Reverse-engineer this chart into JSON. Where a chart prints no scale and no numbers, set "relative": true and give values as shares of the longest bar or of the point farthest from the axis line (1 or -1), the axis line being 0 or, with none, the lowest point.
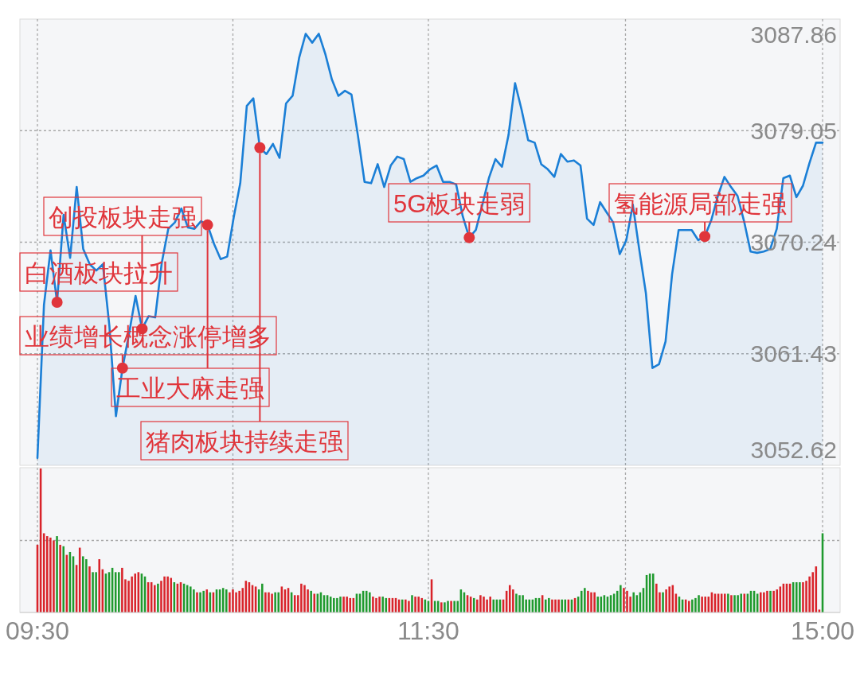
{
  "chart_data": [
    {
      "type": "area",
      "tick_labels": "y",
      "grid": true,
      "ylim": [
        3052.62,
        3087.86
      ],
      "yticks": [
        3052.62,
        3061.43,
        3070.24,
        3079.05,
        3087.86
      ],
      "categories": [
        null,
        null,
        null,
        null,
        null,
        null,
        null,
        null,
        null,
        null,
        null,
        null,
        null,
        null,
        null,
        null,
        null,
        null,
        null,
        null,
        null,
        null,
        null,
        null,
        null,
        null,
        null,
        null,
        null,
        null,
        null,
        null,
        null,
        null,
        null,
        null,
        null,
        null,
        null,
        null,
        null,
        null,
        null,
        null,
        null,
        null,
        null,
        null,
        null,
        null,
        null,
        null,
        null,
        null,
        null,
        null,
        null,
        null,
        null,
        null,
        null,
        null,
        null,
        null,
        null,
        null,
        null,
        null,
        null,
        null,
        null,
        null,
        null,
        null,
        null,
        null,
        null,
        null,
        null,
        null,
        null,
        null,
        null,
        null,
        null,
        null,
        null,
        null,
        null,
        null,
        null,
        null,
        null,
        null,
        null,
        null,
        null,
        null,
        null,
        null,
        null,
        null,
        null,
        null,
        null,
        null,
        null,
        null,
        null,
        null,
        null,
        null,
        null,
        null,
        null,
        null,
        null,
        null,
        null,
        null,
        null
      ],
      "series": [
        {
          "color": "#1b7fd6",
          "values": [
            3053.2,
            3065.3,
            3069.6,
            3065.5,
            3072.4,
            3069.0,
            3074.6,
            3069.7,
            3068.5,
            3068.0,
            3068.5,
            3063.6,
            3056.5,
            3060.3,
            3063.0,
            3066.0,
            3063.4,
            3064.4,
            3064.3,
            3068.6,
            3071.3,
            3071.8,
            3072.9,
            3071.4,
            3071.3,
            3071.9,
            3071.6,
            3070.1,
            3068.9,
            3069.1,
            3072.2,
            3074.9,
            3081.0,
            3081.6,
            3077.7,
            3077.2,
            3078.0,
            3076.9,
            3081.2,
            3081.8,
            3084.8,
            3086.7,
            3086.0,
            3086.7,
            3085.1,
            3083.1,
            3081.8,
            3082.2,
            3081.9,
            3078.6,
            3075.0,
            3074.9,
            3076.4,
            3074.6,
            3076.3,
            3077.0,
            3076.8,
            3075.0,
            3075.3,
            3075.5,
            3076.0,
            3076.3,
            3075.0,
            3075.0,
            3074.8,
            3072.3,
            3070.6,
            3071.2,
            3073.2,
            3075.3,
            3076.8,
            3076.2,
            3078.7,
            3082.8,
            3080.7,
            3078.3,
            3078.1,
            3076.4,
            3076.0,
            3075.4,
            3077.2,
            3076.6,
            3076.7,
            3076.3,
            3072.1,
            3071.6,
            3073.4,
            3072.6,
            3071.8,
            3069.3,
            3070.4,
            3073.2,
            3069.6,
            3066.2,
            3060.3,
            3060.6,
            3062.4,
            3067.7,
            3071.2,
            3071.2,
            3071.2,
            3070.4,
            3070.7,
            3072.0,
            3073.9,
            3075.4,
            3074.6,
            3073.9,
            3071.9,
            3069.5,
            3069.4,
            3069.5,
            3069.7,
            3071.3,
            3075.3,
            3075.5,
            3073.8,
            3074.7,
            3076.5,
            3078.1,
            3078.1
          ]
        },
        {
          "type": "scatter",
          "color": "#e0353b",
          "marker": "circle",
          "values": [
            null,
            null,
            null,
            3065.5,
            null,
            null,
            null,
            null,
            null,
            null,
            null,
            null,
            null,
            3060.3,
            null,
            null,
            3063.4,
            null,
            null,
            null,
            null,
            null,
            null,
            null,
            null,
            null,
            3071.6,
            null,
            null,
            null,
            null,
            null,
            null,
            null,
            3077.7,
            null,
            null,
            null,
            null,
            null,
            null,
            null,
            null,
            null,
            null,
            null,
            null,
            null,
            null,
            null,
            null,
            null,
            null,
            null,
            null,
            null,
            null,
            null,
            null,
            null,
            null,
            null,
            null,
            null,
            null,
            null,
            3070.6,
            null,
            null,
            null,
            null,
            null,
            null,
            null,
            null,
            null,
            null,
            null,
            null,
            null,
            null,
            null,
            null,
            null,
            null,
            null,
            null,
            null,
            null,
            null,
            null,
            null,
            null,
            null,
            null,
            null,
            null,
            null,
            null,
            null,
            null,
            null,
            3070.7,
            null,
            null,
            null,
            null,
            null,
            null,
            null,
            null,
            null,
            null,
            null,
            null,
            null,
            null,
            null,
            null,
            null,
            null
          ]
        }
      ],
      "annotations": [
        "白酒板块拉升",
        "业绩增长概念涨停增多",
        "创投板块走强",
        "工业大麻走强",
        "猪肉板块持续走强",
        "5G板块走弱",
        "氢能源局部走强"
      ]
    },
    {
      "type": "bar",
      "relative": true,
      "grid": true,
      "categories": [
        "09:30",
        null,
        null,
        null,
        null,
        null,
        null,
        null,
        null,
        null,
        null,
        null,
        null,
        null,
        null,
        null,
        null,
        null,
        null,
        null,
        null,
        null,
        null,
        null,
        null,
        null,
        null,
        null,
        null,
        null,
        null,
        null,
        null,
        null,
        null,
        null,
        null,
        null,
        null,
        null,
        null,
        null,
        null,
        null,
        null,
        null,
        null,
        null,
        null,
        null,
        null,
        null,
        null,
        null,
        null,
        null,
        null,
        null,
        null,
        null,
        null,
        null,
        null,
        null,
        null,
        null,
        null,
        null,
        null,
        null,
        null,
        null,
        null,
        null,
        null,
        null,
        null,
        null,
        null,
        null,
        null,
        null,
        null,
        null,
        null,
        null,
        null,
        null,
        null,
        null,
        null,
        null,
        null,
        null,
        null,
        null,
        null,
        null,
        null,
        null,
        null,
        null,
        null,
        null,
        null,
        null,
        null,
        null,
        null,
        null,
        null,
        null,
        null,
        null,
        null,
        null,
        null,
        null,
        null,
        null,
        "11:30",
        null,
        null,
        null,
        null,
        null,
        null,
        null,
        null,
        null,
        null,
        null,
        null,
        null,
        null,
        null,
        null,
        null,
        null,
        null,
        null,
        null,
        null,
        null,
        null,
        null,
        null,
        null,
        null,
        null,
        null,
        null,
        null,
        null,
        null,
        null,
        null,
        null,
        null,
        null,
        null,
        null,
        null,
        null,
        null,
        null,
        null,
        null,
        null,
        null,
        null,
        null,
        null,
        null,
        null,
        null,
        null,
        null,
        null,
        null,
        null,
        null,
        null,
        null,
        null,
        null,
        null,
        null,
        null,
        null,
        null,
        null,
        null,
        null,
        null,
        null,
        null,
        null,
        null,
        null,
        null,
        null,
        null,
        null,
        null,
        null,
        null,
        null,
        null,
        null,
        null,
        null,
        null,
        null,
        null,
        null,
        null,
        null,
        null,
        null,
        null,
        null,
        null,
        null,
        null,
        null,
        null,
        null,
        null,
        null,
        null,
        null,
        null,
        null,
        null,
        null,
        null,
        null,
        null,
        null,
        null,
        "15:00"
      ],
      "values": [
        0.47,
        1.0,
        0.55,
        0.53,
        0.52,
        0.5,
        0.53,
        0.47,
        0.46,
        0.4,
        0.42,
        0.39,
        0.33,
        0.45,
        0.39,
        0.37,
        0.32,
        0.28,
        0.28,
        0.37,
        0.3,
        0.27,
        0.28,
        0.31,
        0.28,
        0.28,
        0.31,
        0.23,
        0.22,
        0.25,
        0.27,
        0.28,
        0.27,
        0.25,
        0.21,
        0.21,
        0.19,
        0.2,
        0.22,
        0.25,
        0.25,
        0.24,
        0.21,
        0.2,
        0.21,
        0.2,
        0.19,
        0.18,
        0.16,
        0.14,
        0.14,
        0.15,
        0.16,
        0.14,
        0.14,
        0.16,
        0.16,
        0.17,
        0.16,
        0.14,
        0.16,
        0.14,
        0.15,
        0.17,
        0.22,
        0.21,
        0.19,
        0.18,
        0.16,
        0.2,
        0.14,
        0.14,
        0.13,
        0.14,
        0.14,
        0.18,
        0.16,
        0.17,
        0.14,
        0.12,
        0.12,
        0.2,
        0.19,
        0.16,
        0.15,
        0.13,
        0.13,
        0.14,
        0.12,
        0.12,
        0.11,
        0.1,
        0.1,
        0.11,
        0.11,
        0.11,
        0.1,
        0.1,
        0.13,
        0.13,
        0.15,
        0.15,
        0.14,
        0.11,
        0.1,
        0.11,
        0.11,
        0.1,
        0.1,
        0.1,
        0.1,
        0.09,
        0.09,
        0.09,
        0.08,
        0.12,
        0.11,
        0.11,
        0.1,
        0.09,
        0.08,
        0.23,
        0.08,
        0.08,
        0.07,
        0.07,
        0.08,
        0.08,
        0.08,
        0.08,
        0.16,
        0.14,
        0.12,
        0.11,
        0.1,
        0.09,
        0.12,
        0.11,
        0.09,
        0.11,
        0.09,
        0.09,
        0.09,
        0.09,
        0.15,
        0.19,
        0.16,
        0.13,
        0.12,
        0.12,
        0.09,
        0.09,
        0.09,
        0.1,
        0.1,
        0.12,
        0.09,
        0.1,
        0.09,
        0.09,
        0.09,
        0.09,
        0.09,
        0.09,
        0.09,
        0.1,
        0.11,
        0.15,
        0.17,
        0.15,
        0.14,
        0.14,
        0.11,
        0.11,
        0.12,
        0.11,
        0.12,
        0.13,
        0.15,
        0.19,
        0.17,
        0.15,
        0.11,
        0.14,
        0.12,
        0.14,
        0.17,
        0.26,
        0.27,
        0.27,
        0.2,
        0.14,
        0.14,
        0.16,
        0.18,
        0.19,
        0.13,
        0.11,
        0.09,
        0.09,
        0.08,
        0.09,
        0.1,
        0.12,
        0.11,
        0.11,
        0.11,
        0.14,
        0.13,
        0.13,
        0.13,
        0.13,
        0.13,
        0.12,
        0.12,
        0.12,
        0.13,
        0.13,
        0.13,
        0.15,
        0.15,
        0.13,
        0.14,
        0.14,
        0.15,
        0.15,
        0.15,
        0.16,
        0.18,
        0.2,
        0.2,
        0.2,
        0.21,
        0.21,
        0.21,
        0.21,
        0.22,
        0.25,
        0.28,
        0.32,
        0.02,
        0.55
      ],
      "colors": [
        "#d9232a",
        "#d9232a",
        "#d9232a",
        "#d9232a",
        "#d9232a",
        "#d9232a",
        "#1f9a2e",
        "#d9232a",
        "#1f9a2e",
        "#d9232a",
        "#1f9a2e",
        "#1f9a2e",
        "#d9232a",
        "#d9232a",
        "#1f9a2e",
        "#1f9a2e",
        "#d9232a",
        "#1f9a2e",
        "#1f9a2e",
        "#d9232a",
        "#d9232a",
        "#1f9a2e",
        "#1f9a2e",
        "#1f9a2e",
        "#1f9a2e",
        "#1f9a2e",
        "#d9232a",
        "#d9232a",
        "#d9232a",
        "#d9232a",
        "#d9232a",
        "#d9232a",
        "#1f9a2e",
        "#1f9a2e",
        "#d9232a",
        "#d9232a",
        "#d9232a",
        "#1f9a2e",
        "#d9232a",
        "#d9232a",
        "#d9232a",
        "#d9232a",
        "#1f9a2e",
        "#d9232a",
        "#d9232a",
        "#1f9a2e",
        "#1f9a2e",
        "#1f9a2e",
        "#1f9a2e",
        "#d9232a",
        "#1f9a2e",
        "#1f9a2e",
        "#d9232a",
        "#1f9a2e",
        "#d9232a",
        "#1f9a2e",
        "#1f9a2e",
        "#1f9a2e",
        "#1f9a2e",
        "#d9232a",
        "#d9232a",
        "#d9232a",
        "#d9232a",
        "#d9232a",
        "#d9232a",
        "#d9232a",
        "#d9232a",
        "#d9232a",
        "#1f9a2e",
        "#1f9a2e",
        "#d9232a",
        "#d9232a",
        "#d9232a",
        "#1f9a2e",
        "#1f9a2e",
        "#d9232a",
        "#d9232a",
        "#d9232a",
        "#1f9a2e",
        "#d9232a",
        "#d9232a",
        "#d9232a",
        "#d9232a",
        "#d9232a",
        "#1f9a2e",
        "#d9232a",
        "#1f9a2e",
        "#1f9a2e",
        "#1f9a2e",
        "#1f9a2e",
        "#1f9a2e",
        "#1f9a2e",
        "#1f9a2e",
        "#1f9a2e",
        "#d9232a",
        "#d9232a",
        "#d9232a",
        "#d9232a",
        "#1f9a2e",
        "#1f9a2e",
        "#1f9a2e",
        "#1f9a2e",
        "#1f9a2e",
        "#d9232a",
        "#d9232a",
        "#d9232a",
        "#1f9a2e",
        "#1f9a2e",
        "#d9232a",
        "#d9232a",
        "#d9232a",
        "#d9232a",
        "#1f9a2e",
        "#d9232a",
        "#d9232a",
        "#1f9a2e",
        "#d9232a",
        "#d9232a",
        "#d9232a",
        "#1f9a2e",
        "#1f9a2e",
        "#d9232a",
        "#1f9a2e",
        "#1f9a2e",
        "#d9232a",
        "#1f9a2e",
        "#1f9a2e",
        "#d9232a",
        "#1f9a2e",
        "#1f9a2e",
        "#1f9a2e",
        "#1f9a2e",
        "#d9232a",
        "#d9232a",
        "#1f9a2e",
        "#d9232a",
        "#d9232a",
        "#d9232a",
        "#d9232a",
        "#d9232a",
        "#1f9a2e",
        "#1f9a2e",
        "#1f9a2e",
        "#d9232a",
        "#d9232a",
        "#d9232a",
        "#d9232a",
        "#1f9a2e",
        "#1f9a2e",
        "#1f9a2e",
        "#1f9a2e",
        "#1f9a2e",
        "#1f9a2e",
        "#1f9a2e",
        "#1f9a2e",
        "#d9232a",
        "#1f9a2e",
        "#1f9a2e",
        "#d9232a",
        "#d9232a",
        "#d9232a",
        "#1f9a2e",
        "#1f9a2e",
        "#d9232a",
        "#1f9a2e",
        "#d9232a",
        "#1f9a2e",
        "#1f9a2e",
        "#1f9a2e",
        "#d9232a",
        "#d9232a",
        "#d9232a",
        "#1f9a2e",
        "#1f9a2e",
        "#1f9a2e",
        "#1f9a2e",
        "#1f9a2e",
        "#1f9a2e",
        "#1f9a2e",
        "#1f9a2e",
        "#d9232a",
        "#d9232a",
        "#d9232a",
        "#1f9a2e",
        "#1f9a2e",
        "#1f9a2e",
        "#1f9a2e",
        "#1f9a2e",
        "#1f9a2e",
        "#1f9a2e",
        "#d9232a",
        "#d9232a",
        "#1f9a2e",
        "#d9232a",
        "#d9232a",
        "#d9232a",
        "#d9232a",
        "#1f9a2e",
        "#1f9a2e",
        "#d9232a",
        "#d9232a",
        "#1f9a2e",
        "#1f9a2e",
        "#1f9a2e",
        "#d9232a",
        "#d9232a",
        "#d9232a",
        "#d9232a",
        "#d9232a",
        "#d9232a",
        "#d9232a",
        "#d9232a",
        "#1f9a2e",
        "#d9232a",
        "#1f9a2e",
        "#1f9a2e",
        "#1f9a2e",
        "#d9232a",
        "#1f9a2e",
        "#1f9a2e",
        "#1f9a2e",
        "#1f9a2e",
        "#d9232a",
        "#d9232a",
        "#d9232a",
        "#1f9a2e",
        "#d9232a",
        "#d9232a",
        "#d9232a",
        "#d9232a",
        "#d9232a",
        "#d9232a",
        "#1f9a2e",
        "#1f9a2e",
        "#1f9a2e",
        "#d9232a",
        "#d9232a",
        "#d9232a",
        "#d9232a",
        "#d9232a",
        "#d9232a",
        "#1f9a2e"
      ]
    }
  ]
}
